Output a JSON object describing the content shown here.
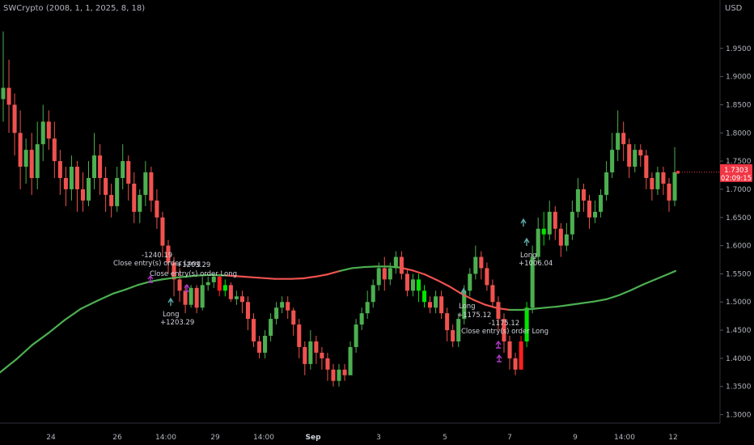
{
  "title": "SWCrypto (2008, 1, 1, 2025, 8, 18)",
  "currency": "USD",
  "last_price": "1.7303",
  "countdown": "02:09:15",
  "colors": {
    "bull": "#4caf50",
    "bear": "#f0524f",
    "bull_bright": "#00e600",
    "bear_bright": "#ff1f1f",
    "ma_up": "#4caf50",
    "ma_down": "#f0524f",
    "marker": "#b039c8",
    "arrow": "#5fa8a8",
    "text": "#b2b5be",
    "badge": "#f23645"
  },
  "chart_data": {
    "type": "candlestick",
    "ylim": [
      1.285,
      2.01
    ],
    "y_ticks": [
      "1.9500",
      "1.9000",
      "1.8500",
      "1.8000",
      "1.7500",
      "1.7000",
      "1.6500",
      "1.6000",
      "1.5500",
      "1.5000",
      "1.4500",
      "1.4000",
      "1.3500",
      "1.3000"
    ],
    "x_ticks": [
      "24",
      "26",
      "14:00",
      "29",
      "14:00",
      "Sep",
      "3",
      "5",
      "7",
      "9",
      "14:00",
      "12"
    ],
    "candles": [
      [
        1.86,
        1.88,
        1.98,
        1.82
      ],
      [
        1.88,
        1.85,
        1.93,
        1.8
      ],
      [
        1.85,
        1.8,
        1.87,
        1.76
      ],
      [
        1.8,
        1.74,
        1.84,
        1.7
      ],
      [
        1.74,
        1.77,
        1.79,
        1.71
      ],
      [
        1.77,
        1.72,
        1.8,
        1.69
      ],
      [
        1.72,
        1.78,
        1.82,
        1.7
      ],
      [
        1.78,
        1.82,
        1.85,
        1.75
      ],
      [
        1.82,
        1.79,
        1.84,
        1.77
      ],
      [
        1.79,
        1.75,
        1.82,
        1.72
      ],
      [
        1.75,
        1.72,
        1.77,
        1.69
      ],
      [
        1.72,
        1.7,
        1.74,
        1.67
      ],
      [
        1.7,
        1.74,
        1.76,
        1.68
      ],
      [
        1.74,
        1.7,
        1.75,
        1.66
      ],
      [
        1.7,
        1.68,
        1.73,
        1.66
      ],
      [
        1.68,
        1.72,
        1.75,
        1.67
      ],
      [
        1.72,
        1.76,
        1.8,
        1.7
      ],
      [
        1.76,
        1.72,
        1.78,
        1.69
      ],
      [
        1.72,
        1.69,
        1.74,
        1.66
      ],
      [
        1.69,
        1.67,
        1.71,
        1.65
      ],
      [
        1.67,
        1.72,
        1.74,
        1.66
      ],
      [
        1.72,
        1.75,
        1.78,
        1.7
      ],
      [
        1.75,
        1.71,
        1.76,
        1.68
      ],
      [
        1.71,
        1.66,
        1.73,
        1.64
      ],
      [
        1.66,
        1.69,
        1.7,
        1.64
      ],
      [
        1.69,
        1.73,
        1.75,
        1.67
      ],
      [
        1.73,
        1.68,
        1.74,
        1.66
      ],
      [
        1.68,
        1.65,
        1.7,
        1.63
      ],
      [
        1.65,
        1.6,
        1.66,
        1.58
      ],
      [
        1.6,
        1.57,
        1.61,
        1.55
      ],
      [
        1.57,
        1.54,
        1.58,
        1.51
      ],
      [
        1.54,
        1.52,
        1.56,
        1.5
      ],
      [
        1.52,
        1.495,
        1.53,
        1.48
      ],
      [
        1.495,
        1.525,
        1.53,
        1.49
      ],
      [
        1.525,
        1.49,
        1.53,
        1.48
      ],
      [
        1.49,
        1.53,
        1.545,
        1.485
      ],
      [
        1.53,
        1.535,
        1.545,
        1.52
      ],
      [
        1.535,
        1.545,
        1.55,
        1.525
      ],
      [
        1.545,
        1.52,
        1.55,
        1.51
      ],
      [
        1.52,
        1.53,
        1.54,
        1.51
      ],
      [
        1.53,
        1.505,
        1.535,
        1.5
      ],
      [
        1.505,
        1.51,
        1.52,
        1.495
      ],
      [
        1.51,
        1.5,
        1.52,
        1.48
      ],
      [
        1.5,
        1.47,
        1.51,
        1.45
      ],
      [
        1.47,
        1.43,
        1.48,
        1.42
      ],
      [
        1.43,
        1.41,
        1.44,
        1.4
      ],
      [
        1.41,
        1.44,
        1.45,
        1.4
      ],
      [
        1.44,
        1.47,
        1.48,
        1.43
      ],
      [
        1.47,
        1.49,
        1.5,
        1.46
      ],
      [
        1.49,
        1.5,
        1.51,
        1.48
      ],
      [
        1.5,
        1.485,
        1.51,
        1.47
      ],
      [
        1.485,
        1.46,
        1.49,
        1.44
      ],
      [
        1.46,
        1.42,
        1.47,
        1.4
      ],
      [
        1.42,
        1.39,
        1.43,
        1.37
      ],
      [
        1.39,
        1.43,
        1.45,
        1.38
      ],
      [
        1.43,
        1.41,
        1.44,
        1.39
      ],
      [
        1.41,
        1.4,
        1.42,
        1.38
      ],
      [
        1.4,
        1.38,
        1.41,
        1.36
      ],
      [
        1.38,
        1.36,
        1.39,
        1.35
      ],
      [
        1.36,
        1.38,
        1.39,
        1.35
      ],
      [
        1.38,
        1.37,
        1.39,
        1.36
      ],
      [
        1.37,
        1.42,
        1.43,
        1.37
      ],
      [
        1.42,
        1.46,
        1.47,
        1.41
      ],
      [
        1.46,
        1.48,
        1.49,
        1.45
      ],
      [
        1.48,
        1.5,
        1.52,
        1.47
      ],
      [
        1.5,
        1.53,
        1.54,
        1.49
      ],
      [
        1.53,
        1.56,
        1.57,
        1.52
      ],
      [
        1.56,
        1.54,
        1.58,
        1.52
      ],
      [
        1.54,
        1.56,
        1.57,
        1.53
      ],
      [
        1.56,
        1.58,
        1.59,
        1.55
      ],
      [
        1.58,
        1.55,
        1.59,
        1.54
      ],
      [
        1.55,
        1.52,
        1.56,
        1.51
      ],
      [
        1.52,
        1.54,
        1.55,
        1.51
      ],
      [
        1.54,
        1.52,
        1.55,
        1.5
      ],
      [
        1.52,
        1.5,
        1.53,
        1.49
      ],
      [
        1.5,
        1.49,
        1.51,
        1.48
      ],
      [
        1.49,
        1.51,
        1.52,
        1.48
      ],
      [
        1.51,
        1.48,
        1.52,
        1.47
      ],
      [
        1.48,
        1.45,
        1.49,
        1.43
      ],
      [
        1.45,
        1.43,
        1.46,
        1.42
      ],
      [
        1.43,
        1.47,
        1.48,
        1.42
      ],
      [
        1.47,
        1.52,
        1.53,
        1.46
      ],
      [
        1.52,
        1.55,
        1.56,
        1.51
      ],
      [
        1.55,
        1.58,
        1.6,
        1.54
      ],
      [
        1.58,
        1.56,
        1.59,
        1.54
      ],
      [
        1.56,
        1.53,
        1.57,
        1.52
      ],
      [
        1.53,
        1.5,
        1.54,
        1.49
      ],
      [
        1.5,
        1.47,
        1.51,
        1.45
      ],
      [
        1.47,
        1.43,
        1.48,
        1.41
      ],
      [
        1.43,
        1.4,
        1.44,
        1.38
      ],
      [
        1.4,
        1.38,
        1.41,
        1.37
      ],
      [
        1.38,
        1.43,
        1.44,
        1.38
      ],
      [
        1.43,
        1.49,
        1.5,
        1.42
      ],
      [
        1.49,
        1.58,
        1.6,
        1.48
      ],
      [
        1.58,
        1.63,
        1.65,
        1.57
      ],
      [
        1.63,
        1.62,
        1.66,
        1.6
      ],
      [
        1.62,
        1.66,
        1.68,
        1.61
      ],
      [
        1.66,
        1.63,
        1.67,
        1.61
      ],
      [
        1.63,
        1.6,
        1.64,
        1.58
      ],
      [
        1.6,
        1.62,
        1.64,
        1.59
      ],
      [
        1.62,
        1.66,
        1.68,
        1.61
      ],
      [
        1.66,
        1.7,
        1.72,
        1.65
      ],
      [
        1.7,
        1.68,
        1.71,
        1.66
      ],
      [
        1.68,
        1.65,
        1.69,
        1.63
      ],
      [
        1.65,
        1.66,
        1.68,
        1.64
      ],
      [
        1.66,
        1.69,
        1.7,
        1.65
      ],
      [
        1.69,
        1.73,
        1.75,
        1.68
      ],
      [
        1.73,
        1.77,
        1.8,
        1.72
      ],
      [
        1.77,
        1.8,
        1.84,
        1.75
      ],
      [
        1.8,
        1.78,
        1.82,
        1.75
      ],
      [
        1.78,
        1.74,
        1.79,
        1.72
      ],
      [
        1.74,
        1.77,
        1.78,
        1.73
      ],
      [
        1.77,
        1.76,
        1.78,
        1.74
      ],
      [
        1.76,
        1.72,
        1.77,
        1.7
      ],
      [
        1.72,
        1.7,
        1.73,
        1.68
      ],
      [
        1.7,
        1.73,
        1.74,
        1.69
      ],
      [
        1.73,
        1.71,
        1.74,
        1.69
      ],
      [
        1.71,
        1.68,
        1.72,
        1.66
      ],
      [
        1.68,
        1.7303,
        1.775,
        1.67
      ]
    ],
    "moving_average": [
      [
        0,
        1.375
      ],
      [
        20,
        1.398
      ],
      [
        40,
        1.424
      ],
      [
        60,
        1.445
      ],
      [
        80,
        1.468
      ],
      [
        100,
        1.488
      ],
      [
        120,
        1.502
      ],
      [
        140,
        1.515
      ],
      [
        155,
        1.522
      ],
      [
        170,
        1.53
      ],
      [
        185,
        1.536
      ],
      [
        200,
        1.54
      ],
      [
        215,
        1.543
      ],
      [
        230,
        1.545
      ],
      [
        245,
        1.547
      ],
      [
        260,
        1.548
      ],
      [
        280,
        1.547
      ],
      [
        300,
        1.545
      ],
      [
        320,
        1.543
      ],
      [
        340,
        1.541
      ],
      [
        360,
        1.541
      ],
      [
        375,
        1.542
      ],
      [
        390,
        1.545
      ],
      [
        405,
        1.549
      ],
      [
        420,
        1.555
      ],
      [
        435,
        1.56
      ],
      [
        450,
        1.562
      ],
      [
        465,
        1.563
      ],
      [
        480,
        1.563
      ],
      [
        495,
        1.561
      ],
      [
        510,
        1.556
      ],
      [
        525,
        1.549
      ],
      [
        540,
        1.539
      ],
      [
        555,
        1.528
      ],
      [
        570,
        1.515
      ],
      [
        585,
        1.504
      ],
      [
        600,
        1.495
      ],
      [
        615,
        1.489
      ],
      [
        630,
        1.486
      ],
      [
        645,
        1.486
      ],
      [
        660,
        1.488
      ],
      [
        675,
        1.49
      ],
      [
        690,
        1.492
      ],
      [
        705,
        1.495
      ],
      [
        720,
        1.498
      ],
      [
        735,
        1.501
      ],
      [
        750,
        1.505
      ],
      [
        765,
        1.512
      ],
      [
        780,
        1.521
      ],
      [
        795,
        1.531
      ],
      [
        810,
        1.54
      ],
      [
        825,
        1.549
      ],
      [
        835,
        1.555
      ]
    ],
    "annotations": [
      {
        "text": "-1240.19",
        "ref": "label1"
      },
      {
        "text": "Close entry(s) order Long",
        "ref": "label2"
      },
      {
        "text": "+1203.29",
        "ref": "label3"
      },
      {
        "text": "Close entry(s) order Long",
        "ref": "label4"
      },
      {
        "text": "Long",
        "ref": "label5"
      },
      {
        "text": "+1203.29",
        "ref": "label6"
      },
      {
        "text": "Long",
        "ref": "label7"
      },
      {
        "text": "+1175.12",
        "ref": "label8"
      },
      {
        "text": "-1175.12",
        "ref": "label9"
      },
      {
        "text": "Close entry(s) order Long",
        "ref": "label10"
      },
      {
        "text": "Long",
        "ref": "label11"
      },
      {
        "text": "+1006.04",
        "ref": "label12"
      }
    ]
  }
}
